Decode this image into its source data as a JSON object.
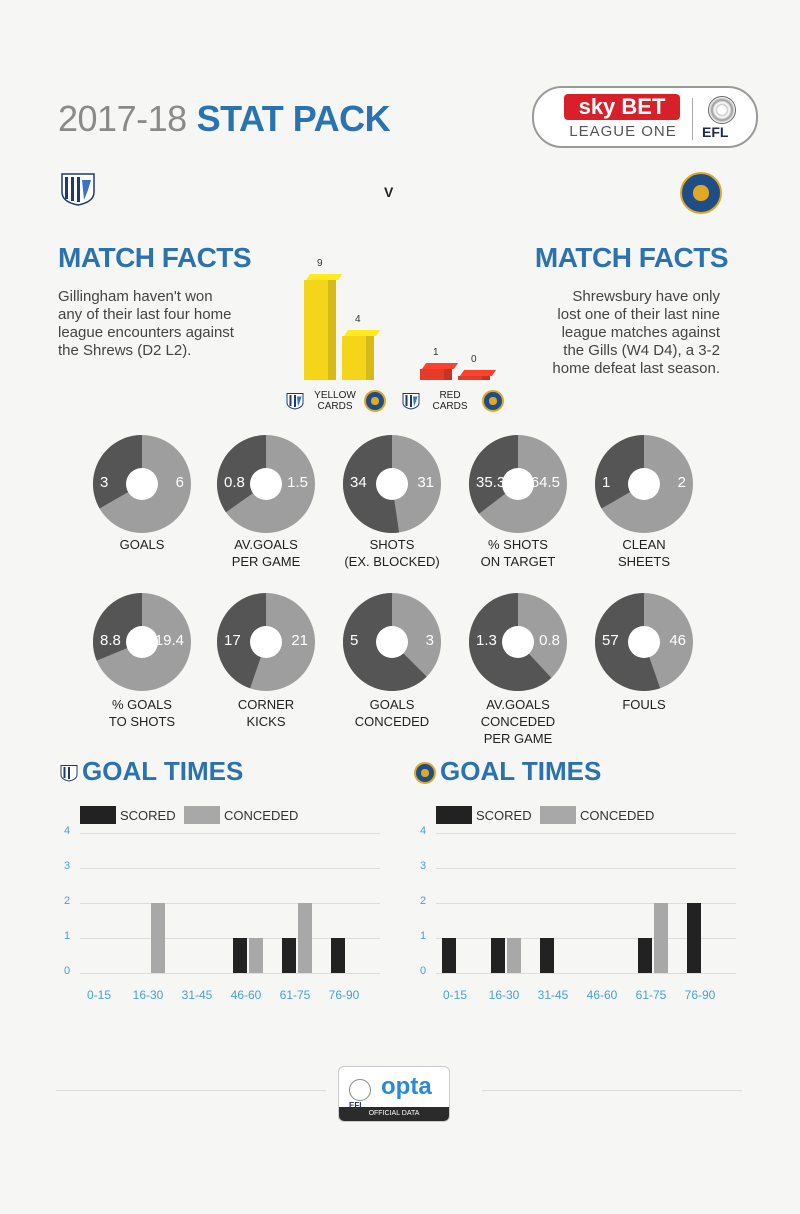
{
  "header": {
    "year": "2017-18",
    "title": "STAT PACK"
  },
  "sponsor": {
    "brand": "sky BET",
    "league": "LEAGUE ONE",
    "org": "EFL"
  },
  "versus": "V",
  "home": {
    "team_icon": "gillingham-crest-icon",
    "facts_title": "MATCH FACTS",
    "facts_text": "Gillingham haven't won any of their last four home league encounters against the Shrews (D2 L2)."
  },
  "away": {
    "team_icon": "shrewsbury-crest-icon",
    "facts_title": "MATCH FACTS",
    "facts_text": "Shrewsbury have only lost one of their last nine league matches against the Gills (W4 D4), a 3-2 home defeat last season."
  },
  "cards": {
    "yellow": {
      "label_1": "YELLOW",
      "label_2": "CARDS",
      "home": 9,
      "away": 4,
      "home_text": "9",
      "away_text": "4",
      "color": "#f4d51a"
    },
    "red": {
      "label_1": "RED",
      "label_2": "CARDS",
      "home": 1,
      "away": 0,
      "home_text": "1",
      "away_text": "0",
      "color": "#e53b2a"
    }
  },
  "donuts": [
    {
      "label_1": "GOALS",
      "label_2": "",
      "home": "3",
      "away": "6"
    },
    {
      "label_1": "AV.GOALS",
      "label_2": "PER GAME",
      "home": "0.8",
      "away": "1.5"
    },
    {
      "label_1": "SHOTS",
      "label_2": "(EX. BLOCKED)",
      "home": "34",
      "away": "31"
    },
    {
      "label_1": "% SHOTS",
      "label_2": "ON TARGET",
      "home": "35.3",
      "away": "64.5"
    },
    {
      "label_1": "CLEAN",
      "label_2": "SHEETS",
      "home": "1",
      "away": "2"
    },
    {
      "label_1": "% GOALS",
      "label_2": "TO SHOTS",
      "home": "8.8",
      "away": "19.4"
    },
    {
      "label_1": "CORNER",
      "label_2": "KICKS",
      "home": "17",
      "away": "21"
    },
    {
      "label_1": "GOALS",
      "label_2": "CONCEDED",
      "home": "5",
      "away": "3"
    },
    {
      "label_1": "AV.GOALS CONCEDED",
      "label_2": "PER GAME",
      "home": "1.3",
      "away": "0.8"
    },
    {
      "label_1": "FOULS",
      "label_2": "",
      "home": "57",
      "away": "46"
    }
  ],
  "goal_times": {
    "title": "GOAL TIMES",
    "legend": {
      "scored": "SCORED",
      "conceded": "CONCEDED"
    },
    "colors": {
      "scored": "#222222",
      "conceded": "#a8a8a8"
    }
  },
  "chart_data": [
    {
      "type": "bar",
      "title": "GOAL TIMES",
      "team": "home",
      "categories": [
        "0-15",
        "16-30",
        "31-45",
        "46-60",
        "61-75",
        "76-90"
      ],
      "series": [
        {
          "name": "SCORED",
          "values": [
            0,
            0,
            0,
            1,
            1,
            1
          ]
        },
        {
          "name": "CONCEDED",
          "values": [
            0,
            2,
            0,
            1,
            2,
            0
          ]
        }
      ],
      "ylim": [
        0,
        4
      ],
      "yticks": [
        "0",
        "1",
        "2",
        "3",
        "4"
      ]
    },
    {
      "type": "bar",
      "title": "GOAL TIMES",
      "team": "away",
      "categories": [
        "0-15",
        "16-30",
        "31-45",
        "46-60",
        "61-75",
        "76-90"
      ],
      "series": [
        {
          "name": "SCORED",
          "values": [
            1,
            1,
            1,
            0,
            1,
            2
          ]
        },
        {
          "name": "CONCEDED",
          "values": [
            0,
            1,
            0,
            0,
            2,
            0
          ]
        }
      ],
      "ylim": [
        0,
        4
      ],
      "yticks": [
        "0",
        "1",
        "2",
        "3",
        "4"
      ]
    }
  ],
  "footer": {
    "brand": "opta",
    "org": "EFL",
    "caption": "OFFICIAL DATA"
  }
}
